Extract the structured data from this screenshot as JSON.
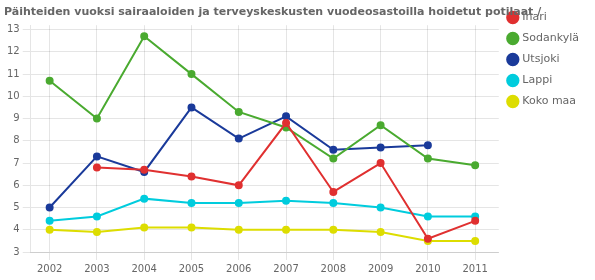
{
  "chart_data": {
    "type": "line",
    "title": "Päihteiden vuoksi sairaaloiden ja terveyskeskusten vuodeosastoilla hoidetut potilaat /",
    "x": [
      2002,
      2003,
      2004,
      2005,
      2006,
      2007,
      2008,
      2009,
      2010,
      2011
    ],
    "series": [
      {
        "name": "Inari",
        "color": "#e03030",
        "values": [
          null,
          6.8,
          6.7,
          6.4,
          6.0,
          8.8,
          5.7,
          7.0,
          3.6,
          4.4
        ]
      },
      {
        "name": "Sodankylä",
        "color": "#4aaa30",
        "values": [
          10.7,
          9.0,
          12.7,
          11.0,
          9.3,
          8.6,
          7.2,
          8.7,
          7.2,
          6.9
        ]
      },
      {
        "name": "Utsjoki",
        "color": "#1a3a9a",
        "values": [
          5.0,
          7.3,
          6.6,
          9.5,
          8.1,
          9.1,
          7.6,
          7.7,
          7.8,
          null
        ]
      },
      {
        "name": "Lappi",
        "color": "#00ccdd",
        "values": [
          4.4,
          4.6,
          5.4,
          5.2,
          5.2,
          5.3,
          5.2,
          5.0,
          4.6,
          4.6
        ]
      },
      {
        "name": "Koko maa",
        "color": "#dddd00",
        "values": [
          4.0,
          3.9,
          4.1,
          4.1,
          4.0,
          4.0,
          4.0,
          3.9,
          3.5,
          3.5
        ]
      }
    ],
    "xlim": [
      2001.6,
      2011.5
    ],
    "xticks": [
      2002,
      2003,
      2004,
      2005,
      2006,
      2007,
      2008,
      2009,
      2010,
      2011
    ],
    "ylim": [
      3,
      13.2
    ],
    "yticks": [
      3,
      4,
      5,
      6,
      7,
      8,
      9,
      10,
      11,
      12,
      13
    ],
    "grid": true,
    "legend": "upper right",
    "marker": "circle"
  }
}
